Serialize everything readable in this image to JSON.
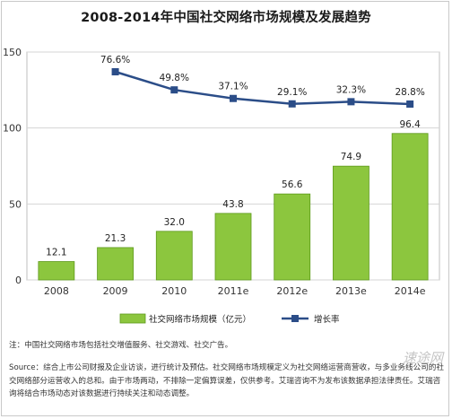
{
  "chart_data": {
    "type": "bar",
    "title": "2008-2014年中国社交网络市场规模及发展趋势",
    "categories": [
      "2008",
      "2009",
      "2010",
      "2011e",
      "2012e",
      "2013e",
      "2014e"
    ],
    "series": [
      {
        "name": "社交网络市场规模（亿元）",
        "type": "bar",
        "values": [
          12.1,
          21.3,
          32.0,
          43.8,
          56.6,
          74.9,
          96.4
        ],
        "labels": [
          "12.1",
          "21.3",
          "32.0",
          "43.8",
          "56.6",
          "74.9",
          "96.4"
        ]
      },
      {
        "name": "增长率",
        "type": "line",
        "axis": "secondary",
        "values": [
          null,
          76.6,
          49.8,
          37.1,
          29.1,
          32.3,
          28.8
        ],
        "labels": [
          "",
          "76.6%",
          "49.8%",
          "37.1%",
          "29.1%",
          "32.3%",
          "28.8%"
        ]
      }
    ],
    "ylim": [
      0,
      150
    ],
    "yticks": [
      "0",
      "50",
      "100",
      "150"
    ],
    "xlabel": "",
    "ylabel": "",
    "grid": true,
    "legend": "bottom",
    "colors": {
      "bar": "#8cc63e",
      "bar_edge": "#5e9a1c",
      "line": "#2b4d88",
      "grid": "#d4d4d4"
    }
  },
  "note": "注：中国社交网络市场包括社交增值服务、社交游戏、社交广告。",
  "source": "Source：综合上市公司财报及企业访谈，进行统计及预估。社交网络市场规模定义为社交网络运营商营收，与多业务线公司的社交网络部分运营收入的总和。由于市场两动，不排除一定偏算误差，仅供参考。艾瑞咨询不为发布该数据承担法律责任。艾瑞咨询将结合市场动态对该数据进行持续关注和动态调整。",
  "watermark": "速途网"
}
